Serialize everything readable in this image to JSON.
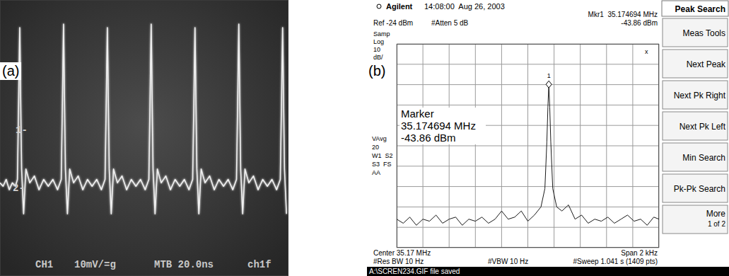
{
  "chart_data": [
    {
      "type": "line",
      "title": "(a)",
      "x": [
        0,
        2,
        4,
        6,
        8,
        10,
        11.3,
        12.8,
        14.0,
        15.3,
        16.8,
        19.3,
        22.3,
        25.3,
        28.3,
        31.3,
        34.3,
        37.3,
        39.7,
        41.2,
        42.4,
        43.7,
        45.2,
        47.7,
        50.7,
        53.7,
        56.7,
        59.7,
        62.7,
        65.7,
        68.1,
        69.6,
        70.8,
        72.1,
        73.6,
        76.1,
        79.1,
        82.1,
        85.1,
        88.1,
        91.1,
        94.1,
        96.5,
        98.0,
        99.2,
        100.5,
        102.0,
        104.5,
        107.5,
        110.5,
        113.5,
        116.5,
        119.5,
        122.5,
        124.9,
        126.4,
        127.6,
        128.9,
        130.4,
        132.9,
        135.9,
        138.9,
        141.9,
        144.9,
        147.9,
        150.9,
        153.3,
        154.8,
        156.0,
        157.3,
        158.8,
        161.3,
        164.3,
        167.3,
        170.3,
        173.3,
        176.3,
        179.3,
        181.7,
        183.2,
        184.4,
        185.7
      ],
      "values": [
        1,
        0,
        2,
        -1,
        1,
        0,
        2,
        46,
        5,
        -8,
        5,
        1,
        3,
        -1,
        2,
        0,
        2,
        -1,
        2,
        47,
        5,
        -8,
        5,
        1,
        3,
        -1,
        2,
        0,
        2,
        -1,
        2,
        46,
        5,
        -8,
        5,
        1,
        3,
        -1,
        2,
        0,
        2,
        -1,
        2,
        47,
        5,
        -8,
        5,
        1,
        3,
        -1,
        2,
        0,
        2,
        -1,
        2,
        46,
        5,
        -8,
        5,
        1,
        3,
        -1,
        2,
        0,
        2,
        -1,
        2,
        47,
        5,
        -8,
        5,
        1,
        3,
        -1,
        2,
        0,
        2,
        -1,
        2,
        46,
        5,
        -8
      ],
      "color": "#f0f0f0",
      "xlim": [
        0,
        187
      ],
      "ylim": [
        -26,
        54
      ],
      "grid": false,
      "tick_labels": false,
      "annotations": [
        "1-",
        "2-",
        "CH1",
        "10mV/=g",
        "MTB 20.0ns",
        "ch1f"
      ]
    },
    {
      "type": "line",
      "title": "(b)",
      "x": [
        35.173534,
        35.173584,
        35.173634,
        35.173684,
        35.173734,
        35.173784,
        35.173834,
        35.173884,
        35.173934,
        35.173984,
        35.174034,
        35.174084,
        35.174134,
        35.174184,
        35.174234,
        35.174284,
        35.174334,
        35.174384,
        35.174434,
        35.174484,
        35.174534,
        35.174584,
        35.174634,
        35.174664,
        35.174679,
        35.174687,
        35.174694,
        35.174701,
        35.174709,
        35.174724,
        35.174754,
        35.174794,
        35.174844,
        35.174894,
        35.174944,
        35.174994,
        35.175044,
        35.175094,
        35.175144,
        35.175194,
        35.175244,
        35.175294,
        35.175344,
        35.175394,
        35.175444,
        35.175494,
        35.175534
      ],
      "values": [
        -110,
        -112,
        -109,
        -113,
        -110,
        -111,
        -108,
        -112,
        -110,
        -109,
        -113,
        -110,
        -111,
        -109,
        -112,
        -110,
        -106,
        -110,
        -109,
        -106,
        -111,
        -108,
        -104,
        -95,
        -72,
        -55,
        -43.86,
        -55,
        -72,
        -95,
        -104,
        -106,
        -103,
        -110,
        -108,
        -112,
        -110,
        -111,
        -109,
        -112,
        -110,
        -108,
        -111,
        -110,
        -113,
        -109,
        -110
      ],
      "color": "#1a1a1a",
      "xlim": [
        35.173534,
        35.175534
      ],
      "ylim": [
        -124,
        -24
      ],
      "xticks": [
        35.173534,
        35.173734,
        35.173934,
        35.174134,
        35.174334,
        35.174534,
        35.174734,
        35.174934,
        35.175134,
        35.175334,
        35.175534
      ],
      "yticks": [
        -124,
        -114,
        -104,
        -94,
        -84,
        -74,
        -64,
        -54,
        -44,
        -34,
        -24
      ],
      "grid": true,
      "tick_labels": false,
      "peak_marker": {
        "label": "1",
        "x": 35.174694,
        "y": -43.86
      },
      "menu": [
        "Peak Search",
        "Meas Tools",
        "Next Peak",
        "Next Pk Right",
        "Next Pk Left",
        "Min Search",
        "Pk-Pk Search",
        "More"
      ],
      "annotations": [
        "Agilent",
        "14:08:00  Aug 26, 2003",
        "Mkr1  35.174694 MHz",
        "-43.86 dBm",
        "Ref -24 dBm",
        "#Atten 5 dB",
        "Samp",
        "Log",
        "10",
        "dB/",
        "Marker",
        "35.174694 MHz",
        "-43.86 dBm",
        "VAvg",
        "20",
        "W1  S2",
        "S3  FS",
        "AA",
        "Center 35.17 MHz",
        "Span 2 kHz",
        "#Res BW 10 Hz",
        "#VBW 10 Hz",
        "#Sweep 1.041 s (1409 pts)",
        "A:\\SCREN234.GIF file saved",
        "x",
        "1 of 2"
      ]
    }
  ]
}
